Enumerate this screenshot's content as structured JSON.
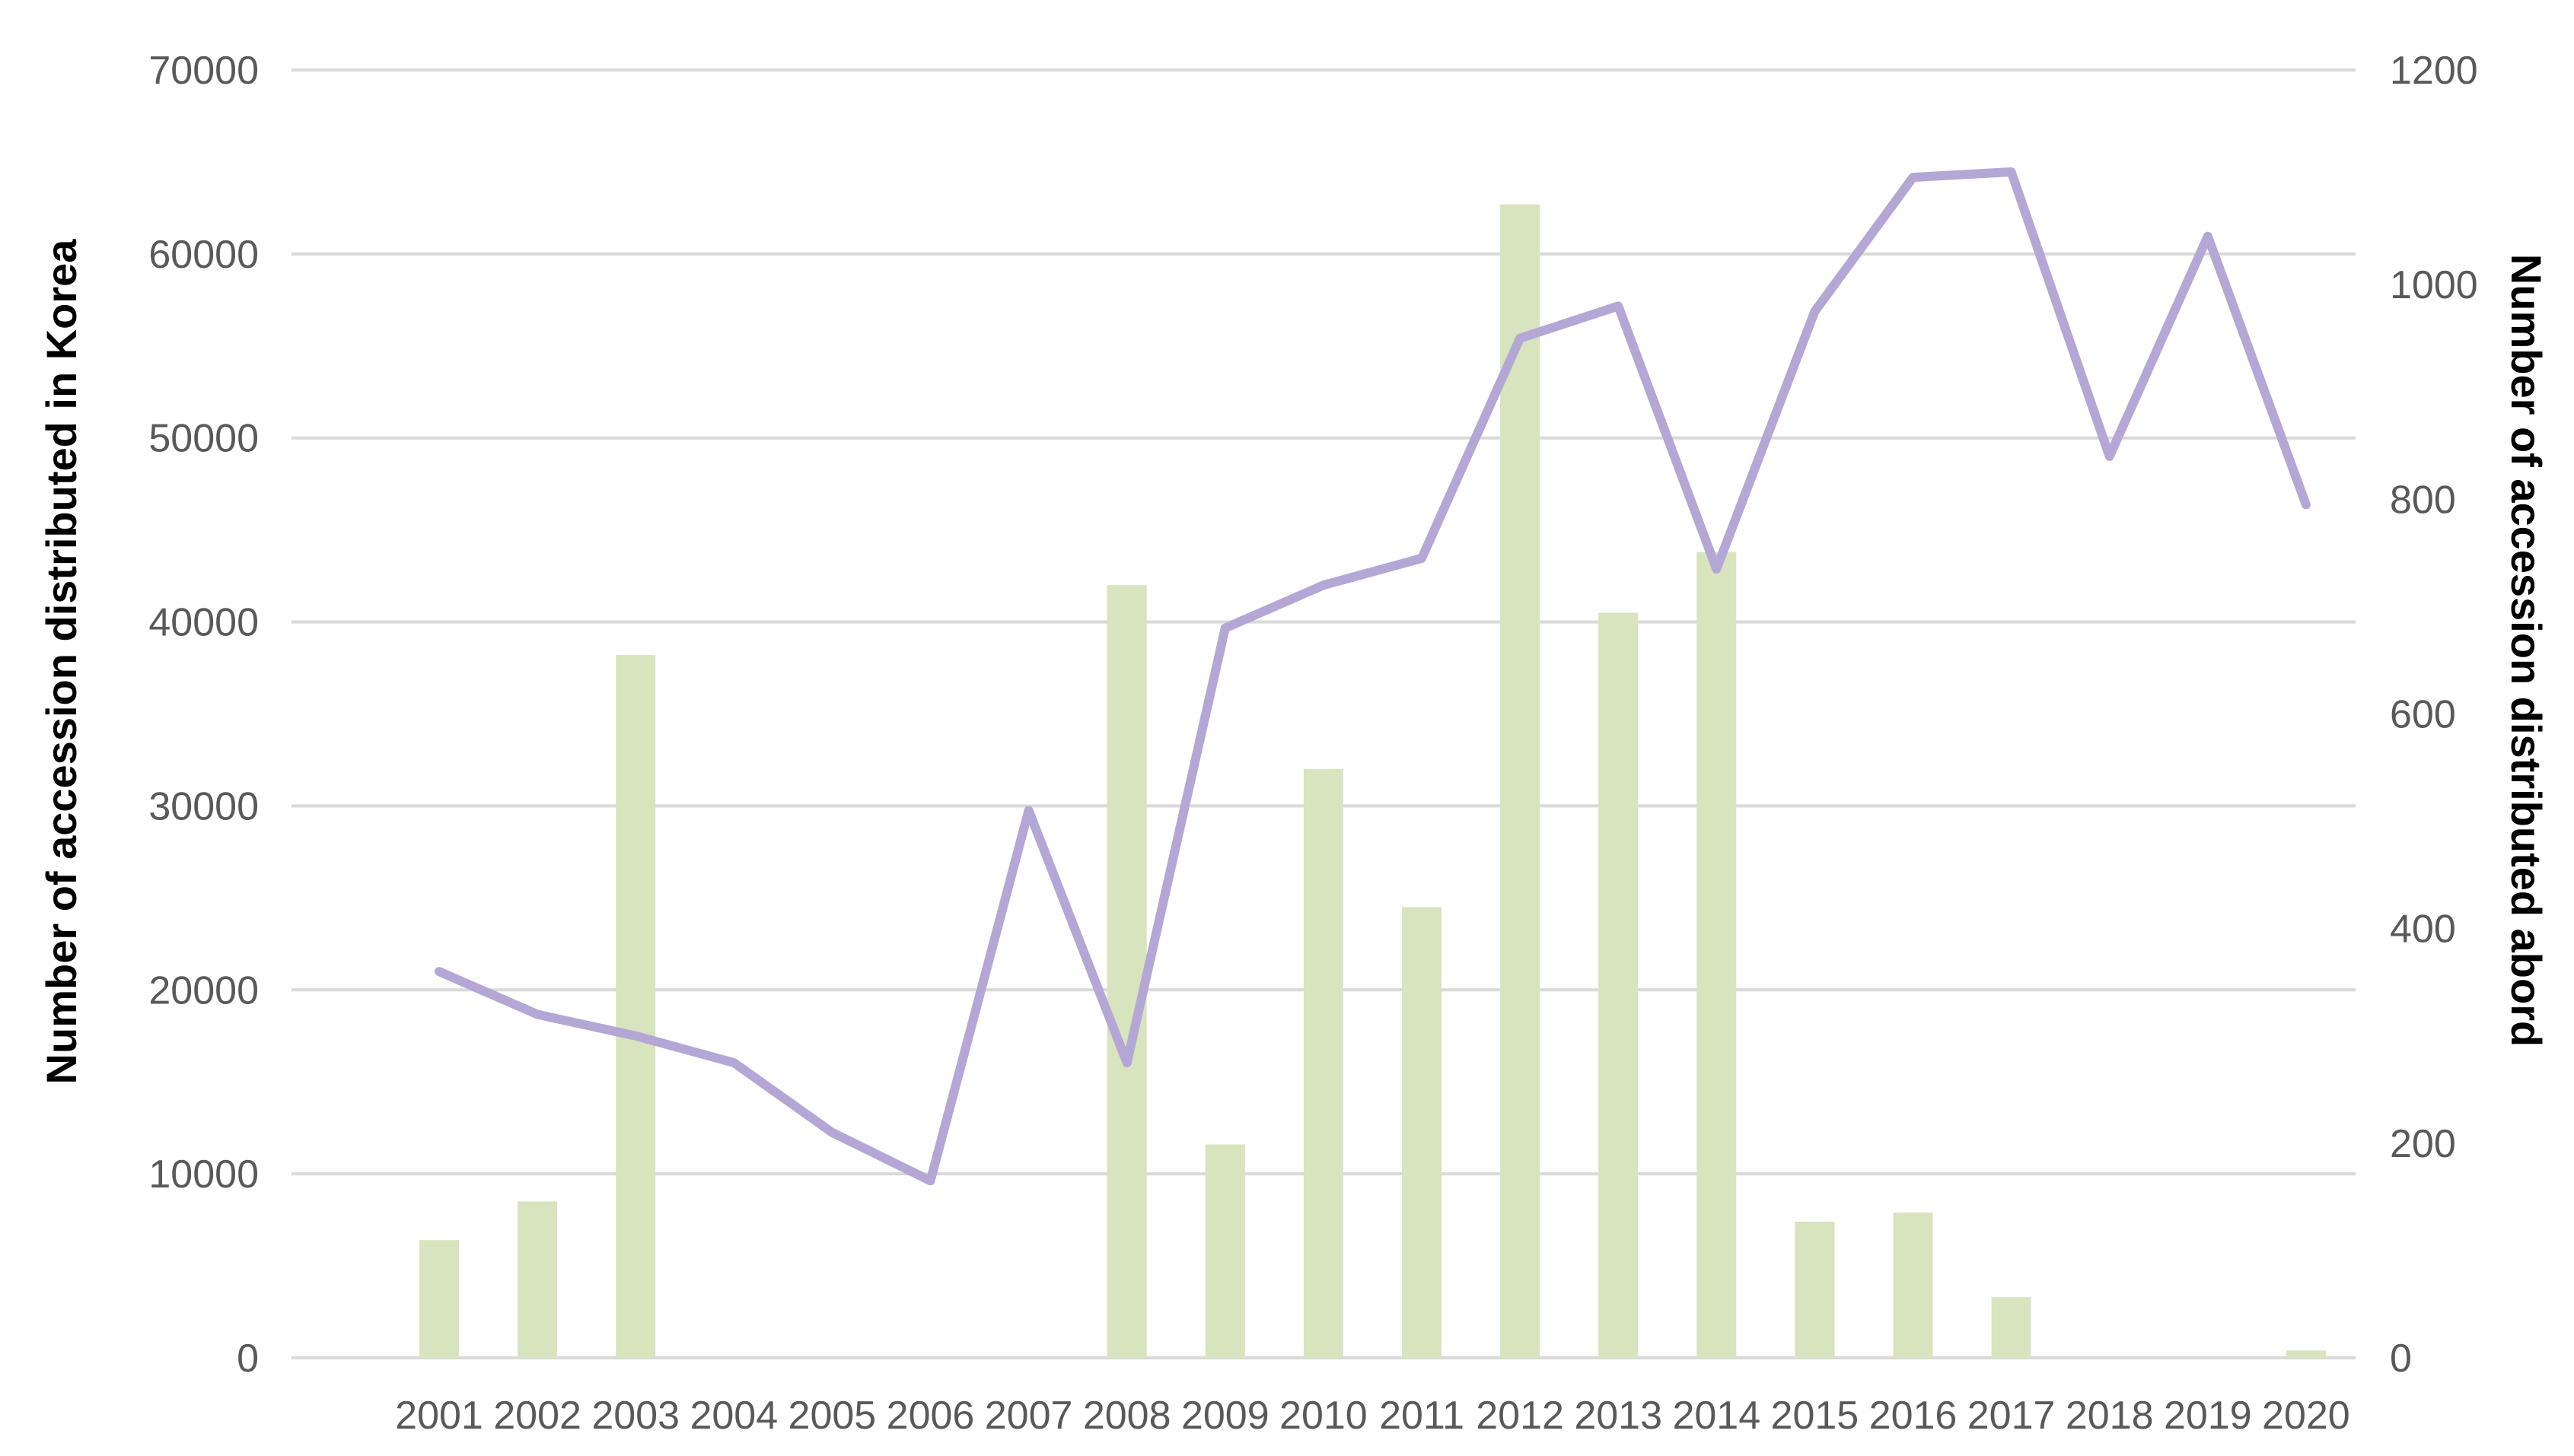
{
  "chart_data": {
    "type": "bar",
    "title": "",
    "categories": [
      "2001",
      "2002",
      "2003",
      "2004",
      "2005",
      "2006",
      "2007",
      "2008",
      "2009",
      "2010",
      "2011",
      "2012",
      "2013",
      "2014",
      "2015",
      "2016",
      "2017",
      "2018",
      "2019",
      "2020"
    ],
    "series": [
      {
        "type": "bar",
        "axis": "left",
        "color": "#d7e4bd",
        "values": [
          6400,
          8500,
          38200,
          0,
          0,
          0,
          0,
          42000,
          11600,
          32000,
          24500,
          62700,
          40500,
          43800,
          7400,
          7900,
          3300,
          0,
          0,
          400
        ]
      },
      {
        "type": "line",
        "axis": "right",
        "color": "#b4a7d6",
        "values": [
          360,
          320,
          300,
          275,
          210,
          165,
          510,
          275,
          680,
          720,
          745,
          950,
          980,
          735,
          975,
          1100,
          1105,
          840,
          1045,
          795
        ]
      }
    ],
    "ylabel": "Number of accession distributed in Korea",
    "y2label": "Number of accession  distributed abord",
    "ylim": [
      0,
      70000
    ],
    "y2lim": [
      0,
      1200
    ],
    "yticks": [
      "0",
      "10000",
      "20000",
      "30000",
      "40000",
      "50000",
      "60000",
      "70000"
    ],
    "y2ticks": [
      "0",
      "200",
      "400",
      "600",
      "800",
      "1000",
      "1200"
    ],
    "grid": true,
    "legend": "none"
  }
}
